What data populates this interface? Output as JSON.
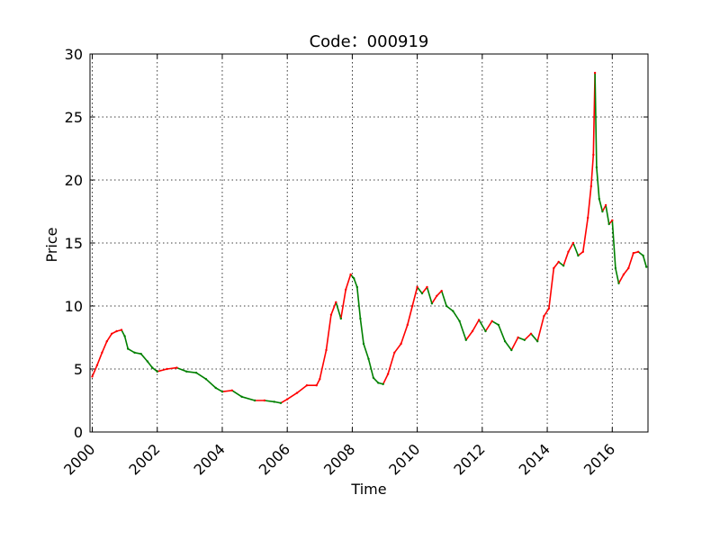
{
  "chart_data": {
    "type": "line",
    "title": "Code：000919",
    "xlabel": "Time",
    "ylabel": "Price",
    "xlim": [
      1999.93,
      2017.1
    ],
    "ylim": [
      0,
      30
    ],
    "x_ticks": [
      2000,
      2002,
      2004,
      2006,
      2008,
      2010,
      2012,
      2014,
      2016
    ],
    "x_tick_labels": [
      "2000",
      "2002",
      "2004",
      "2006",
      "2008",
      "2010",
      "2012",
      "2014",
      "2016"
    ],
    "y_ticks": [
      0,
      5,
      10,
      15,
      20,
      25,
      30
    ],
    "y_tick_labels": [
      "0",
      "5",
      "10",
      "15",
      "20",
      "25",
      "30"
    ],
    "grid": true,
    "colors": {
      "up": "#ff0000",
      "down": "#008000"
    },
    "series": [
      {
        "x": [
          2000.0,
          2000.15,
          2000.3,
          2000.45,
          2000.6,
          2000.75,
          2000.9,
          2001.0,
          2001.1,
          2001.3,
          2001.5,
          2001.7,
          2001.85,
          2002.0,
          2002.3,
          2002.6,
          2002.9,
          2003.2,
          2003.5,
          2003.8,
          2004.0,
          2004.3,
          2004.6,
          2005.0,
          2005.3,
          2005.6,
          2005.8,
          2006.0,
          2006.3,
          2006.6,
          2006.9,
          2007.0,
          2007.2,
          2007.35,
          2007.5,
          2007.65,
          2007.8,
          2007.95,
          2008.05,
          2008.15,
          2008.25,
          2008.35,
          2008.5,
          2008.65,
          2008.8,
          2008.95,
          2009.1,
          2009.3,
          2009.5,
          2009.7,
          2009.85,
          2010.0,
          2010.15,
          2010.3,
          2010.45,
          2010.6,
          2010.75,
          2010.9,
          2011.1,
          2011.3,
          2011.5,
          2011.7,
          2011.9,
          2012.1,
          2012.3,
          2012.5,
          2012.7,
          2012.9,
          2013.1,
          2013.3,
          2013.5,
          2013.7,
          2013.9,
          2014.05,
          2014.2,
          2014.35,
          2014.5,
          2014.65,
          2014.8,
          2014.95,
          2015.1,
          2015.25,
          2015.35,
          2015.42,
          2015.47,
          2015.52,
          2015.6,
          2015.7,
          2015.8,
          2015.9,
          2016.0,
          2016.1,
          2016.2,
          2016.35,
          2016.5,
          2016.65,
          2016.8,
          2016.95,
          2017.05
        ],
        "values": [
          4.4,
          5.3,
          6.3,
          7.2,
          7.8,
          8.0,
          8.1,
          7.6,
          6.6,
          6.3,
          6.2,
          5.6,
          5.1,
          4.8,
          5.0,
          5.1,
          4.8,
          4.7,
          4.2,
          3.5,
          3.2,
          3.3,
          2.8,
          2.5,
          2.5,
          2.4,
          2.3,
          2.6,
          3.1,
          3.7,
          3.7,
          4.2,
          6.5,
          9.3,
          10.3,
          9.0,
          11.3,
          12.5,
          12.2,
          11.5,
          9.0,
          7.0,
          5.8,
          4.3,
          3.9,
          3.8,
          4.6,
          6.3,
          7.0,
          8.5,
          10.0,
          11.5,
          11.0,
          11.5,
          10.2,
          10.8,
          11.2,
          10.0,
          9.6,
          8.8,
          7.3,
          8.0,
          8.9,
          8.0,
          8.8,
          8.5,
          7.2,
          6.5,
          7.5,
          7.3,
          7.8,
          7.2,
          9.2,
          9.8,
          13.0,
          13.5,
          13.2,
          14.3,
          15.0,
          14.0,
          14.3,
          17.0,
          19.5,
          22.0,
          28.5,
          21.0,
          18.5,
          17.5,
          18.0,
          16.5,
          16.8,
          13.0,
          11.8,
          12.5,
          13.0,
          14.2,
          14.3,
          14.0,
          13.1
        ]
      }
    ]
  }
}
